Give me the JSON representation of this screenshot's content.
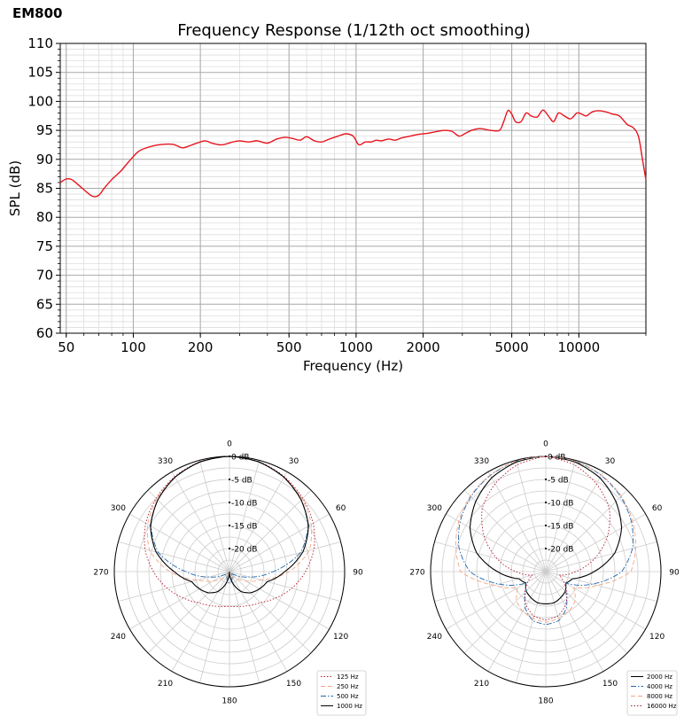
{
  "page": {
    "title": "EM800"
  },
  "chart_data": [
    {
      "type": "line",
      "title": "Frequency Response (1/12th oct smoothing)",
      "xlabel": "Frequency (Hz)",
      "ylabel": "SPL (dB)",
      "xscale": "log",
      "xlim": [
        47,
        20000
      ],
      "ylim": [
        60,
        110
      ],
      "grid": true,
      "xticks": [
        50,
        100,
        200,
        500,
        1000,
        2000,
        5000,
        10000
      ],
      "xtick_labels": [
        "50",
        "100",
        "200",
        "500",
        "1000",
        "2000",
        "5000",
        "10000"
      ],
      "yticks": [
        60,
        65,
        70,
        75,
        80,
        85,
        90,
        95,
        100,
        105,
        110
      ],
      "series": [
        {
          "color": "#e8141e",
          "x": [
            47,
            50,
            53,
            57,
            62,
            66,
            70,
            74,
            80,
            88,
            95,
            105,
            115,
            130,
            150,
            165,
            175,
            190,
            210,
            225,
            250,
            280,
            300,
            330,
            360,
            400,
            440,
            480,
            520,
            560,
            600,
            650,
            700,
            760,
            830,
            900,
            970,
            1030,
            1100,
            1170,
            1230,
            1300,
            1400,
            1500,
            1600,
            1750,
            1900,
            2100,
            2300,
            2500,
            2700,
            2900,
            3100,
            3300,
            3600,
            4000,
            4400,
            4600,
            4800,
            5000,
            5200,
            5500,
            5800,
            6100,
            6500,
            6900,
            7300,
            7700,
            8100,
            8600,
            9200,
            9800,
            10300,
            10800,
            11500,
            12300,
            13200,
            14200,
            15200,
            16500,
            17500,
            18500,
            19300,
            20000
          ],
          "y": [
            86.0,
            86.6,
            86.5,
            85.5,
            84.3,
            83.6,
            83.8,
            85.0,
            86.5,
            88.0,
            89.5,
            91.3,
            92.0,
            92.5,
            92.6,
            92.0,
            92.2,
            92.7,
            93.2,
            92.8,
            92.5,
            93.0,
            93.2,
            93.0,
            93.2,
            92.8,
            93.5,
            93.8,
            93.6,
            93.3,
            93.9,
            93.2,
            93.0,
            93.5,
            94.0,
            94.4,
            94.0,
            92.5,
            93.0,
            93.0,
            93.3,
            93.2,
            93.5,
            93.3,
            93.7,
            94.0,
            94.3,
            94.5,
            94.8,
            95.0,
            94.8,
            94.0,
            94.5,
            95.0,
            95.3,
            95.0,
            95.0,
            96.5,
            98.4,
            97.8,
            96.5,
            96.5,
            98.0,
            97.5,
            97.3,
            98.5,
            97.5,
            96.5,
            98.0,
            97.5,
            97.0,
            98.0,
            97.8,
            97.5,
            98.2,
            98.4,
            98.2,
            97.8,
            97.5,
            96.0,
            95.5,
            94.0,
            90.0,
            86.5
          ]
        }
      ]
    },
    {
      "type": "polar",
      "angle_labels": [
        "0",
        "30",
        "60",
        "90",
        "120",
        "150",
        "180",
        "210",
        "240",
        "270",
        "300",
        "330"
      ],
      "radial_labels": [
        "0 dB",
        "-5 dB",
        "-10 dB",
        "-15 dB",
        "-20 dB"
      ],
      "r_range_db": [
        -25,
        0
      ],
      "angles": [
        0,
        15,
        30,
        45,
        60,
        75,
        90,
        105,
        120,
        135,
        150,
        165,
        180
      ],
      "series": [
        {
          "name": "125 Hz",
          "color": "#b2182b",
          "style": "dotted",
          "db": [
            0,
            -0.3,
            -1.2,
            -2.5,
            -4.0,
            -6.0,
            -8.5,
            -11.0,
            -13.5,
            -15.5,
            -16.5,
            -17.2,
            -17.5
          ]
        },
        {
          "name": "250 Hz",
          "color": "#f4a582",
          "style": "dashed",
          "db": [
            0,
            -0.4,
            -1.3,
            -2.7,
            -4.5,
            -7.0,
            -12.0,
            -18.0,
            -21.0,
            -23.0,
            -24.0,
            -24.5,
            -24.5
          ]
        },
        {
          "name": "500 Hz",
          "color": "#2166ac",
          "style": "dashdot",
          "db": [
            0,
            -0.4,
            -1.4,
            -3.0,
            -5.3,
            -9.0,
            -15.5,
            -20.5,
            -23.5,
            -24.5,
            -24.0,
            -23.0,
            -22.5
          ]
        },
        {
          "name": "1000 Hz",
          "color": "#000000",
          "style": "solid",
          "db": [
            0,
            -0.35,
            -1.35,
            -3.0,
            -5.2,
            -8.5,
            -13.0,
            -16.5,
            -17.5,
            -18.5,
            -20.0,
            -22.5,
            -25.0
          ]
        }
      ]
    },
    {
      "type": "polar",
      "angle_labels": [
        "0",
        "30",
        "60",
        "90",
        "120",
        "150",
        "180",
        "210",
        "240",
        "270",
        "300",
        "330"
      ],
      "radial_labels": [
        "0 dB",
        "-5 dB",
        "-10 dB",
        "-15 dB",
        "-20 dB"
      ],
      "r_range_db": [
        -25,
        0
      ],
      "angles": [
        0,
        15,
        30,
        45,
        60,
        75,
        90,
        105,
        120,
        135,
        150,
        165,
        180
      ],
      "series": [
        {
          "name": "2000 Hz",
          "color": "#000000",
          "style": "solid",
          "db": [
            0,
            -0.4,
            -1.5,
            -3.5,
            -6.0,
            -9.5,
            -14.5,
            -19.0,
            -20.0,
            -19.0,
            -18.5,
            -18.0,
            -18.0
          ]
        },
        {
          "name": "4000 Hz",
          "color": "#2166ac",
          "style": "dashdot",
          "db": [
            0,
            -0.2,
            -0.9,
            -2.0,
            -3.5,
            -5.5,
            -8.5,
            -14.5,
            -20.0,
            -19.0,
            -16.0,
            -14.0,
            -13.5
          ]
        },
        {
          "name": "8000 Hz",
          "color": "#f4a582",
          "style": "dashed",
          "db": [
            0,
            -0.2,
            -0.8,
            -1.8,
            -3.2,
            -4.8,
            -6.5,
            -13.5,
            -18.0,
            -16.0,
            -15.0,
            -14.5,
            -14.0
          ]
        },
        {
          "name": "16000 Hz",
          "color": "#b2182b",
          "style": "dotted",
          "db": [
            0,
            -1.0,
            -3.0,
            -5.5,
            -9.5,
            -14.0,
            -18.5,
            -22.0,
            -20.5,
            -18.5,
            -16.5,
            -15.0,
            -14.5
          ]
        }
      ]
    }
  ]
}
